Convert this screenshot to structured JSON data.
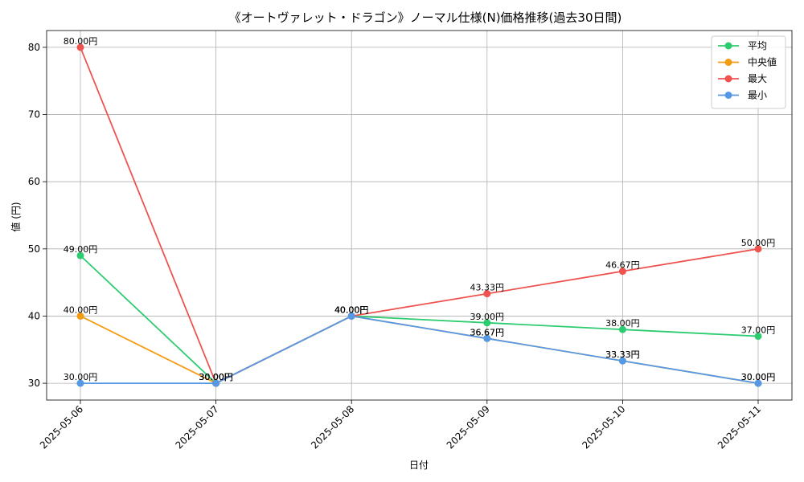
{
  "chart_data": {
    "type": "line",
    "title": "《オートヴァレット・ドラゴン》ノーマル仕様(N)価格推移(過去30日間)",
    "xlabel": "日付",
    "ylabel": "値 (円)",
    "categories": [
      "2025-05-06",
      "2025-05-07",
      "2025-05-08",
      "2025-05-09",
      "2025-05-10",
      "2025-05-11"
    ],
    "ylim": [
      27.5,
      82.5
    ],
    "yticks": [
      30,
      40,
      50,
      60,
      70,
      80
    ],
    "grid": true,
    "legend_position": "top-right",
    "series": [
      {
        "name": "平均",
        "color": "#2ecc71",
        "values": [
          49,
          30,
          40,
          39,
          38,
          37
        ],
        "labels": [
          "49.00円",
          "30.00円",
          "40.00円",
          "39.00円",
          "38.00円",
          "37.00円"
        ]
      },
      {
        "name": "中央値",
        "color": "#f39c12",
        "values": [
          40,
          30,
          40,
          36.67,
          33.33,
          30
        ],
        "labels": [
          "40.00円",
          "30.00円",
          "40.00円",
          "36.67円",
          "33.33円",
          "30.00円"
        ]
      },
      {
        "name": "最大",
        "color": "#ef5350",
        "values": [
          80,
          30,
          40,
          43.33,
          46.67,
          50
        ],
        "labels": [
          "80.00円",
          "30.00円",
          "40.00円",
          "43.33円",
          "46.67円",
          "50.00円"
        ]
      },
      {
        "name": "最小",
        "color": "#5599e6",
        "values": [
          30,
          30,
          40,
          36.67,
          33.33,
          30
        ],
        "labels": [
          "30.00円",
          "30.00円",
          "40.00円",
          "36.67円",
          "33.33円",
          "30.00円"
        ]
      }
    ]
  }
}
